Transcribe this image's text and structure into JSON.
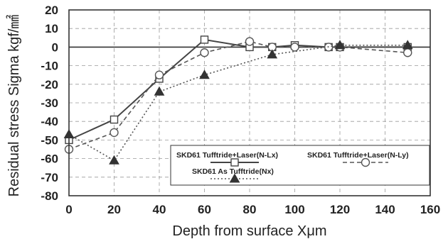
{
  "chart_data": {
    "type": "line",
    "xlabel": "Depth from surface Xμm",
    "ylabel": "Residual stress Sigma kgf/㎟",
    "xlim": [
      0,
      160
    ],
    "ylim": [
      -80,
      20
    ],
    "x_ticks": [
      "0",
      "20",
      "40",
      "60",
      "80",
      "100",
      "120",
      "140",
      "160"
    ],
    "y_ticks": [
      "20",
      "10",
      "0",
      "-10",
      "-20",
      "-30",
      "-40",
      "-50",
      "-60",
      "-70",
      "-80"
    ],
    "grid": "dashed",
    "legend_position": "bottom-right",
    "series": [
      {
        "name": "SKD61 Tufftride+Laser(N-Lx)",
        "marker": "square",
        "line_style": "solid",
        "color": "#444444",
        "x": [
          0,
          20,
          40,
          60,
          80,
          90,
          100,
          115,
          120,
          150
        ],
        "y": [
          -50,
          -39,
          -17,
          4,
          0,
          0,
          1,
          0,
          0,
          0
        ]
      },
      {
        "name": "SKD61 Tufftride+Laser(N-Ly)",
        "marker": "circle",
        "line_style": "dashed",
        "color": "#555555",
        "x": [
          0,
          20,
          40,
          60,
          80,
          90,
          100,
          115,
          120,
          150
        ],
        "y": [
          -55,
          -46,
          -15,
          -3,
          3,
          0,
          0,
          0,
          0,
          -3
        ]
      },
      {
        "name": "SKD61 As Tufftride(Nx)",
        "marker": "triangle",
        "line_style": "dotted",
        "color": "#555555",
        "x": [
          0,
          20,
          40,
          60,
          90,
          120,
          150
        ],
        "y": [
          -47,
          -61,
          -24,
          -15,
          -4,
          1,
          1
        ]
      }
    ]
  }
}
